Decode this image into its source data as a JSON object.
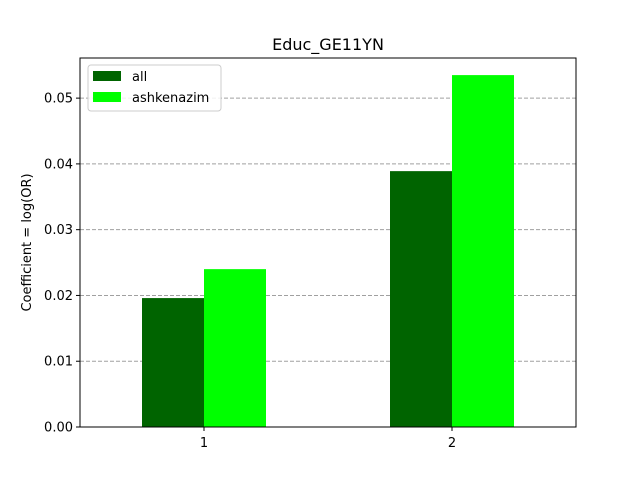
{
  "chart_data": {
    "type": "bar",
    "title": "Educ_GE11YN",
    "xlabel": "",
    "ylabel": "Coefficient = log(OR)",
    "categories": [
      "1",
      "2"
    ],
    "series": [
      {
        "name": "all",
        "color": "#006400",
        "values": [
          0.0196,
          0.0389
        ]
      },
      {
        "name": "ashkenazim",
        "color": "#00ff00",
        "values": [
          0.024,
          0.0535
        ]
      }
    ],
    "ylim": [
      0,
      0.0561
    ],
    "yticks": [
      "0.00",
      "0.01",
      "0.02",
      "0.03",
      "0.04",
      "0.05"
    ],
    "grid": "horizontal dashed",
    "grid_color": "#a0a0a0",
    "legend_position": "upper-left"
  }
}
